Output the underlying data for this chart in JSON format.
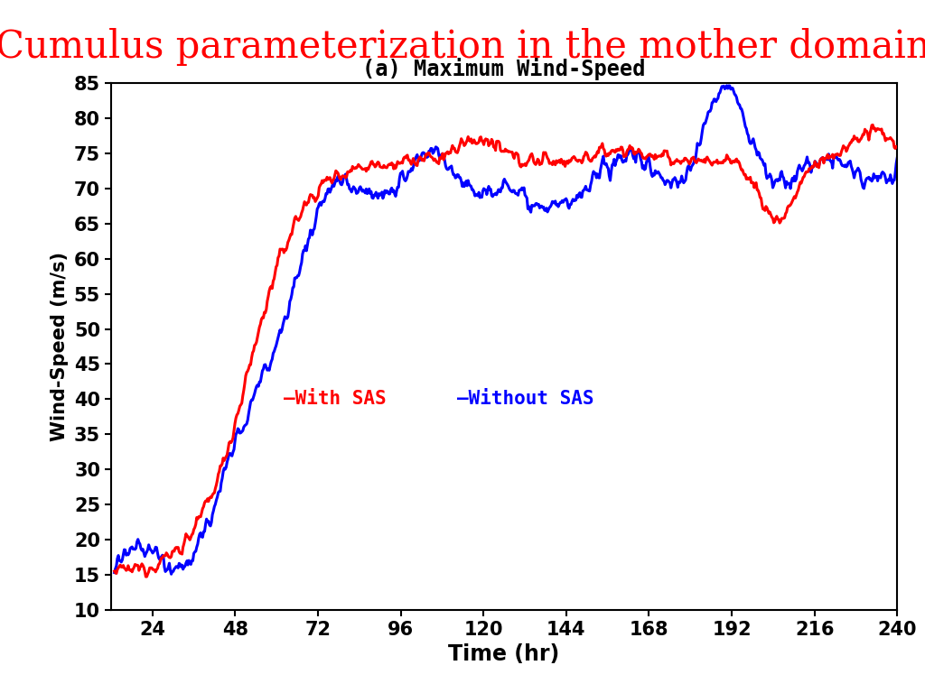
{
  "title": "Cumulus parameterization in the mother domain",
  "subtitle": "(a) Maximum Wind-Speed",
  "xlabel": "Time (hr)",
  "ylabel": "Wind-Speed (m/s)",
  "title_color": "#ff0000",
  "title_fontsize": 30,
  "subtitle_fontsize": 17,
  "xlabel_fontsize": 17,
  "ylabel_fontsize": 15,
  "tick_fontsize": 15,
  "xlim": [
    12,
    240
  ],
  "ylim": [
    10,
    85
  ],
  "xticks": [
    24,
    48,
    72,
    96,
    120,
    144,
    168,
    192,
    216,
    240
  ],
  "yticks": [
    10,
    15,
    20,
    25,
    30,
    35,
    40,
    45,
    50,
    55,
    60,
    65,
    70,
    75,
    80,
    85
  ],
  "line_with_sas_color": "#ff0000",
  "line_without_sas_color": "#0000ff",
  "line_width": 2.2,
  "legend_text_with": "—With SAS",
  "legend_text_without": "—Without SAS",
  "legend_fontsize": 15,
  "background_color": "#ffffff"
}
